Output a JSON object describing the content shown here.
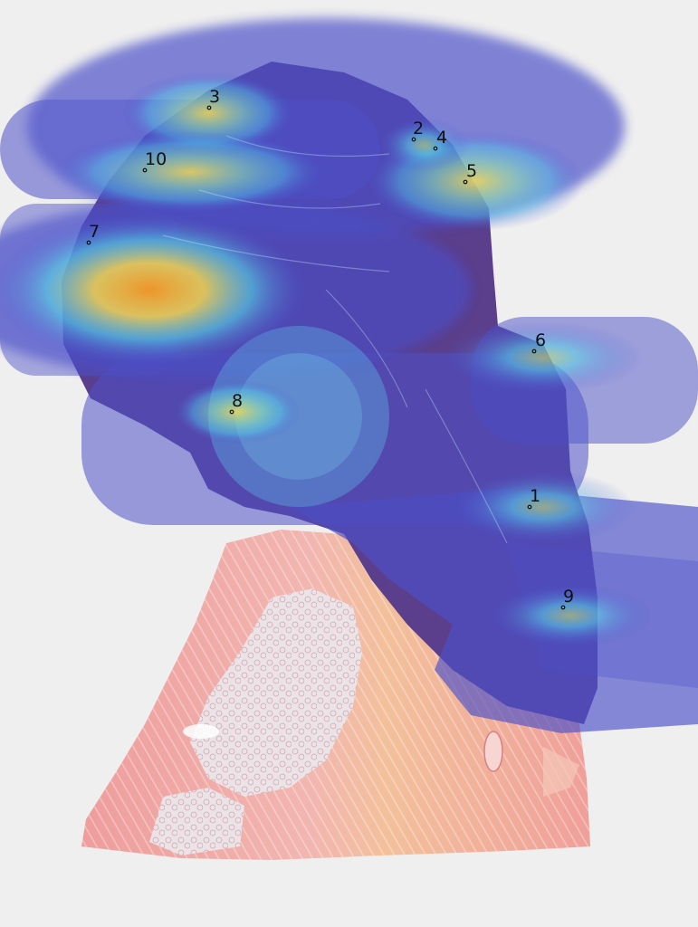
{
  "image": {
    "description_visible": false
  },
  "colors": {
    "background": "#efefef",
    "tissue_pink": "#f0a7a4",
    "tissue_orange": "#f2c29b",
    "gland_pale": "#ebe0e3",
    "overlay_base": "#3a3aa6",
    "heat_cyan": "#58e0e6",
    "heat_yellow": "#f3e15a",
    "heat_orange": "#f3a22d",
    "label": "#111111"
  },
  "markers": [
    {
      "id": "marker-1",
      "label": "1"
    },
    {
      "id": "marker-2",
      "label": "2"
    },
    {
      "id": "marker-3",
      "label": "3"
    },
    {
      "id": "marker-4",
      "label": "4"
    },
    {
      "id": "marker-5",
      "label": "5"
    },
    {
      "id": "marker-6",
      "label": "6"
    },
    {
      "id": "marker-7",
      "label": "7"
    },
    {
      "id": "marker-8",
      "label": "8"
    },
    {
      "id": "marker-9",
      "label": "9"
    },
    {
      "id": "marker-10",
      "label": "10"
    }
  ]
}
